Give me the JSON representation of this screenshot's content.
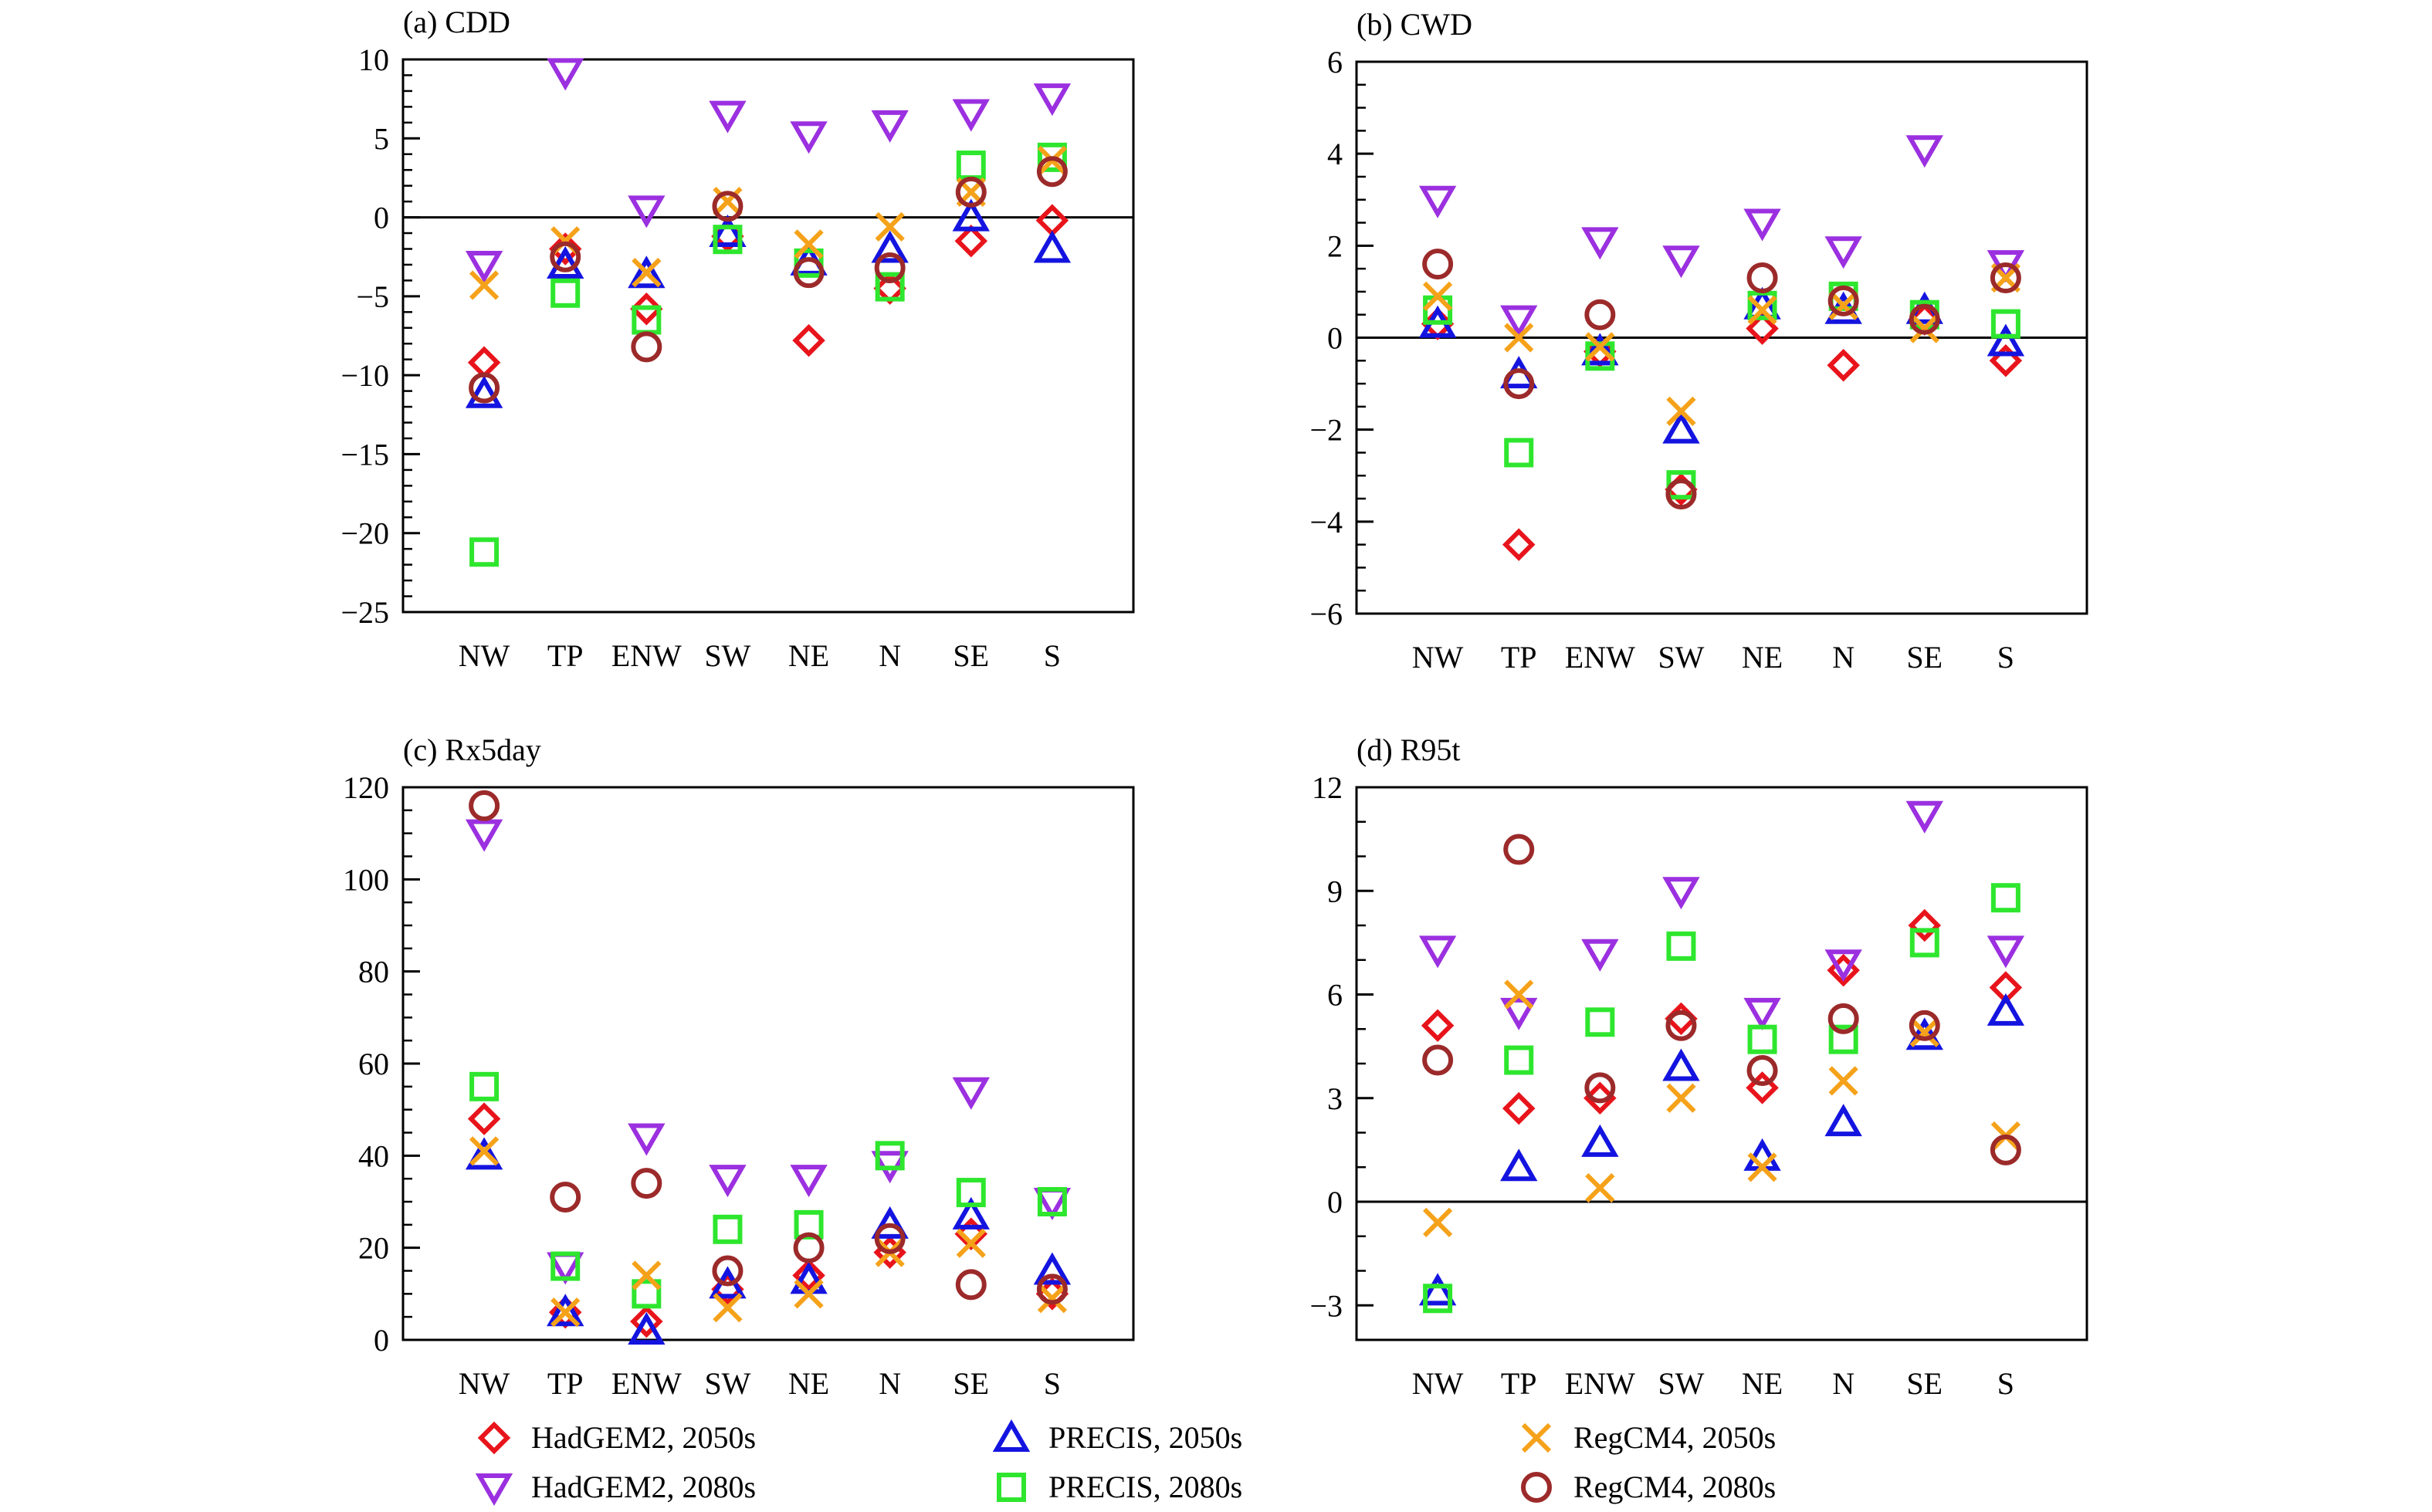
{
  "categories": [
    "NW",
    "TP",
    "ENW",
    "SW",
    "NE",
    "N",
    "SE",
    "S"
  ],
  "series_styles": [
    {
      "key": "had2050",
      "marker": "diamond",
      "color": "#e8141b"
    },
    {
      "key": "had2080",
      "marker": "triangle-down",
      "color": "#9b30e0"
    },
    {
      "key": "pre2050",
      "marker": "triangle-up",
      "color": "#1414e0"
    },
    {
      "key": "pre2080",
      "marker": "square",
      "color": "#2ee62e"
    },
    {
      "key": "reg2050",
      "marker": "x",
      "color": "#f5a21a"
    },
    {
      "key": "reg2080",
      "marker": "circle",
      "color": "#9c2a2a"
    }
  ],
  "legend": [
    {
      "label": "HadGEM2, 2050s",
      "series": "had2050"
    },
    {
      "label": "PRECIS, 2050s",
      "series": "pre2050"
    },
    {
      "label": "RegCM4, 2050s",
      "series": "reg2050"
    },
    {
      "label": "HadGEM2, 2080s",
      "series": "had2080"
    },
    {
      "label": "PRECIS, 2080s",
      "series": "pre2080"
    },
    {
      "label": "RegCM4, 2080s",
      "series": "reg2080"
    }
  ],
  "chart_data": [
    {
      "type": "scatter",
      "title": "(a) CDD",
      "categories": [
        "NW",
        "TP",
        "ENW",
        "SW",
        "NE",
        "N",
        "SE",
        "S"
      ],
      "ylim": [
        -25,
        10
      ],
      "yticks": [
        10,
        5,
        0,
        -5,
        -10,
        -15,
        -20,
        -25
      ],
      "ytick_labels": [
        "10",
        "5",
        "0",
        "−5",
        "−10",
        "−15",
        "−20",
        "−25"
      ],
      "yminor_step": 1,
      "zero_line": true,
      "series": [
        {
          "name": "HadGEM2, 2050s",
          "key": "had2050",
          "values": [
            -9.2,
            -2.0,
            -5.8,
            -1.2,
            -7.8,
            -4.5,
            -1.5,
            -0.2
          ]
        },
        {
          "name": "HadGEM2, 2080s",
          "key": "had2080",
          "values": [
            -3.0,
            9.2,
            0.5,
            6.5,
            5.2,
            5.9,
            6.6,
            7.6
          ]
        },
        {
          "name": "PRECIS, 2050s",
          "key": "pre2050",
          "values": [
            -11.2,
            -3.0,
            -3.6,
            -1.0,
            -2.8,
            -2.0,
            0.0,
            -2.0
          ]
        },
        {
          "name": "PRECIS, 2080s",
          "key": "pre2080",
          "values": [
            -21.2,
            -4.8,
            -6.5,
            -1.4,
            -2.9,
            -4.4,
            3.3,
            3.8
          ]
        },
        {
          "name": "RegCM4, 2050s",
          "key": "reg2050",
          "values": [
            -4.3,
            -1.5,
            -3.5,
            1.0,
            -1.7,
            -0.6,
            1.6,
            3.6
          ]
        },
        {
          "name": "RegCM4, 2080s",
          "key": "reg2080",
          "values": [
            -10.8,
            -2.5,
            -8.2,
            0.7,
            -3.5,
            -3.2,
            1.6,
            2.9
          ]
        }
      ]
    },
    {
      "type": "scatter",
      "title": "(b) CWD",
      "categories": [
        "NW",
        "TP",
        "ENW",
        "SW",
        "NE",
        "N",
        "SE",
        "S"
      ],
      "ylim": [
        -6,
        6
      ],
      "yticks": [
        6,
        4,
        2,
        0,
        -2,
        -4,
        -6
      ],
      "ytick_labels": [
        "6",
        "4",
        "2",
        "0",
        "−2",
        "−4",
        "−6"
      ],
      "yminor_step": 0.5,
      "zero_line": true,
      "series": [
        {
          "name": "HadGEM2, 2050s",
          "key": "had2050",
          "values": [
            0.3,
            -4.5,
            -0.3,
            -3.3,
            0.2,
            -0.6,
            0.4,
            -0.5
          ]
        },
        {
          "name": "HadGEM2, 2080s",
          "key": "had2080",
          "values": [
            3.0,
            0.4,
            2.1,
            1.7,
            2.5,
            1.9,
            4.1,
            1.6
          ]
        },
        {
          "name": "PRECIS, 2050s",
          "key": "pre2050",
          "values": [
            0.3,
            -0.8,
            -0.3,
            -2.0,
            0.7,
            0.6,
            0.6,
            -0.1
          ]
        },
        {
          "name": "PRECIS, 2080s",
          "key": "pre2080",
          "values": [
            0.6,
            -2.5,
            -0.4,
            -3.2,
            0.7,
            0.9,
            0.5,
            0.3
          ]
        },
        {
          "name": "RegCM4, 2050s",
          "key": "reg2050",
          "values": [
            0.9,
            0.0,
            -0.2,
            -1.6,
            0.6,
            0.7,
            0.2,
            1.3
          ]
        },
        {
          "name": "RegCM4, 2080s",
          "key": "reg2080",
          "values": [
            1.6,
            -1.0,
            0.5,
            -3.4,
            1.3,
            0.8,
            0.4,
            1.3
          ]
        }
      ]
    },
    {
      "type": "scatter",
      "title": "(c) Rx5day",
      "categories": [
        "NW",
        "TP",
        "ENW",
        "SW",
        "NE",
        "N",
        "SE",
        "S"
      ],
      "ylim": [
        0,
        120
      ],
      "yticks": [
        120,
        100,
        80,
        60,
        40,
        20,
        0
      ],
      "ytick_labels": [
        "120",
        "100",
        "80",
        "60",
        "40",
        "20",
        "0"
      ],
      "yminor_step": 5,
      "zero_line": false,
      "series": [
        {
          "name": "HadGEM2, 2050s",
          "key": "had2050",
          "values": [
            48,
            6,
            4,
            11,
            14,
            19,
            23,
            10
          ]
        },
        {
          "name": "HadGEM2, 2080s",
          "key": "had2080",
          "values": [
            110,
            16,
            44,
            35,
            35,
            38,
            54,
            30
          ]
        },
        {
          "name": "PRECIS, 2050s",
          "key": "pre2050",
          "values": [
            40,
            6,
            2,
            12,
            13,
            25,
            27,
            15
          ]
        },
        {
          "name": "PRECIS, 2080s",
          "key": "pre2080",
          "values": [
            55,
            16,
            10,
            24,
            25,
            40,
            32,
            30
          ]
        },
        {
          "name": "RegCM4, 2050s",
          "key": "reg2050",
          "values": [
            41,
            6,
            14,
            7,
            10,
            19,
            21,
            9
          ]
        },
        {
          "name": "RegCM4, 2080s",
          "key": "reg2080",
          "values": [
            116,
            31,
            34,
            15,
            20,
            22,
            12,
            11
          ]
        }
      ]
    },
    {
      "type": "scatter",
      "title": "(d) R95t",
      "categories": [
        "NW",
        "TP",
        "ENW",
        "SW",
        "NE",
        "N",
        "SE",
        "S"
      ],
      "ylim": [
        -4,
        12
      ],
      "yticks": [
        12,
        9,
        6,
        3,
        0,
        -3
      ],
      "ytick_labels": [
        "12",
        "9",
        "6",
        "3",
        "0",
        "−3"
      ],
      "yminor_step": 1,
      "zero_line": true,
      "series": [
        {
          "name": "HadGEM2, 2050s",
          "key": "had2050",
          "values": [
            5.1,
            2.7,
            3.0,
            5.3,
            3.3,
            6.7,
            8.0,
            6.2
          ]
        },
        {
          "name": "HadGEM2, 2080s",
          "key": "had2080",
          "values": [
            7.3,
            5.5,
            7.2,
            9.0,
            5.5,
            6.9,
            11.2,
            7.3
          ]
        },
        {
          "name": "PRECIS, 2050s",
          "key": "pre2050",
          "values": [
            -2.6,
            1.0,
            1.7,
            3.9,
            1.3,
            2.3,
            4.8,
            5.5
          ]
        },
        {
          "name": "PRECIS, 2080s",
          "key": "pre2080",
          "values": [
            -2.8,
            4.1,
            5.2,
            7.4,
            4.7,
            4.7,
            7.5,
            8.8
          ]
        },
        {
          "name": "RegCM4, 2050s",
          "key": "reg2050",
          "values": [
            -0.6,
            6.0,
            0.4,
            3.0,
            1.0,
            3.5,
            4.9,
            1.9
          ]
        },
        {
          "name": "RegCM4, 2080s",
          "key": "reg2080",
          "values": [
            4.1,
            10.2,
            3.3,
            5.1,
            3.8,
            5.3,
            5.1,
            1.5
          ]
        }
      ]
    }
  ]
}
